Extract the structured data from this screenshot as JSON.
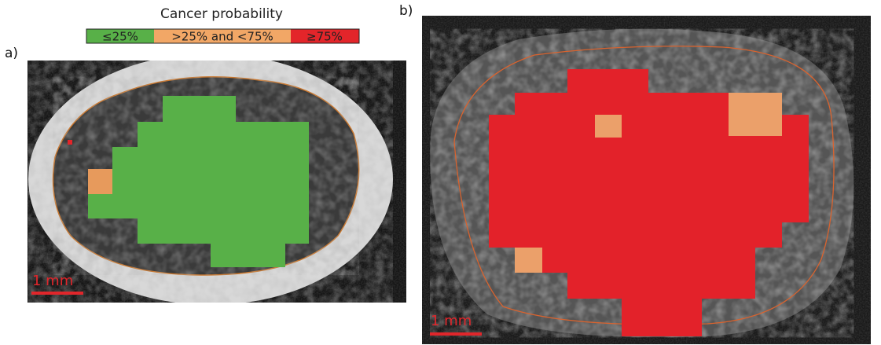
{
  "legend": {
    "title": "Cancer probability",
    "items": [
      "≤25%",
      ">25% and <75%",
      "≥75%"
    ]
  },
  "panels": [
    {
      "label": "a)",
      "scale_bar": "1 mm"
    },
    {
      "label": "b)",
      "scale_bar": "1 mm"
    }
  ]
}
